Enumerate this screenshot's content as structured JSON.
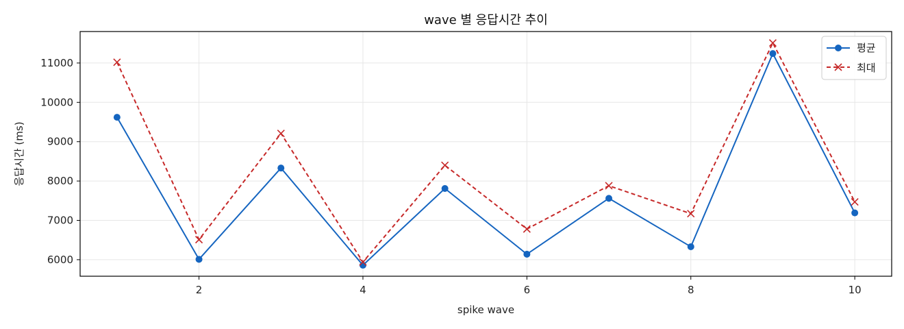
{
  "chart_data": {
    "type": "line",
    "title": "wave 별 응답시간 추이",
    "xlabel": "spike wave",
    "ylabel": "응답시간 (ms)",
    "x": [
      1,
      2,
      3,
      4,
      5,
      6,
      7,
      8,
      9,
      10
    ],
    "xlim": [
      0.55,
      10.45
    ],
    "ylim": [
      5580,
      11800
    ],
    "xticks": [
      2,
      4,
      6,
      8,
      10
    ],
    "yticks": [
      6000,
      7000,
      8000,
      9000,
      10000,
      11000
    ],
    "grid": true,
    "legend_position": "top-right",
    "series": [
      {
        "name": "평균",
        "values": [
          9620,
          6010,
          8330,
          5860,
          7810,
          6140,
          7560,
          6330,
          11240,
          7190
        ],
        "color": "#1565c0",
        "line_style": "solid",
        "marker": "circle"
      },
      {
        "name": "최대",
        "values": [
          11020,
          6510,
          9210,
          5940,
          8400,
          6780,
          7880,
          7170,
          11510,
          7470
        ],
        "color": "#c62828",
        "line_style": "dashed",
        "marker": "x"
      }
    ]
  }
}
